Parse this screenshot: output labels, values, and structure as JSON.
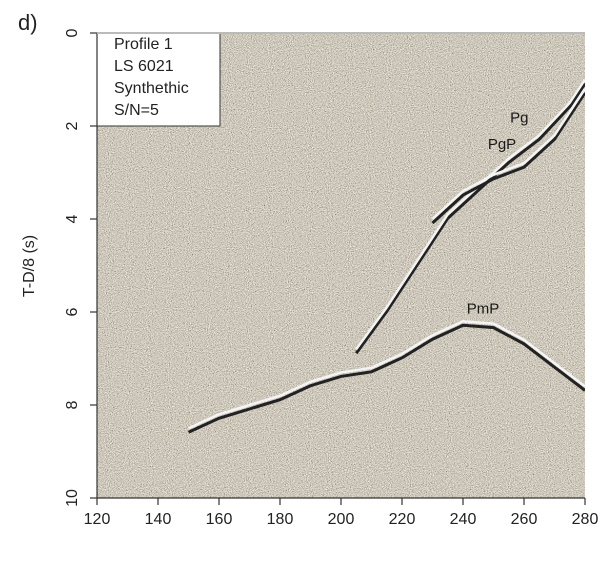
{
  "chart_data": {
    "type": "line",
    "panel_label": "d)",
    "ylabel": "T-D/8 (s)",
    "annotation_lines": [
      "Profile 1",
      "LS 6021",
      "Synthethic",
      "S/N=5"
    ],
    "xlim": [
      120,
      280
    ],
    "xticks": [
      120,
      140,
      160,
      180,
      200,
      220,
      240,
      260,
      280
    ],
    "ylim": [
      10,
      0
    ],
    "yticks": [
      0,
      2,
      4,
      6,
      8,
      10
    ],
    "series": [
      {
        "name": "Pg",
        "color": "#f4f4f4",
        "x": [
          205,
          215,
          225,
          235,
          245,
          255,
          265,
          275,
          280
        ],
        "values": [
          6.8,
          5.9,
          4.9,
          3.9,
          3.3,
          2.7,
          2.2,
          1.5,
          1.0
        ]
      },
      {
        "name": "PgP",
        "color": "#f4f4f4",
        "x": [
          230,
          240,
          250,
          260,
          270,
          280
        ],
        "values": [
          4.0,
          3.4,
          3.05,
          2.8,
          2.2,
          1.2
        ]
      },
      {
        "name": "PmP",
        "color": "#f4f4f4",
        "x": [
          150,
          160,
          170,
          180,
          190,
          200,
          210,
          220,
          230,
          240,
          250,
          260,
          270,
          280
        ],
        "values": [
          8.5,
          8.2,
          8.0,
          7.8,
          7.5,
          7.3,
          7.2,
          6.9,
          6.5,
          6.2,
          6.25,
          6.6,
          7.1,
          7.6
        ]
      }
    ]
  }
}
